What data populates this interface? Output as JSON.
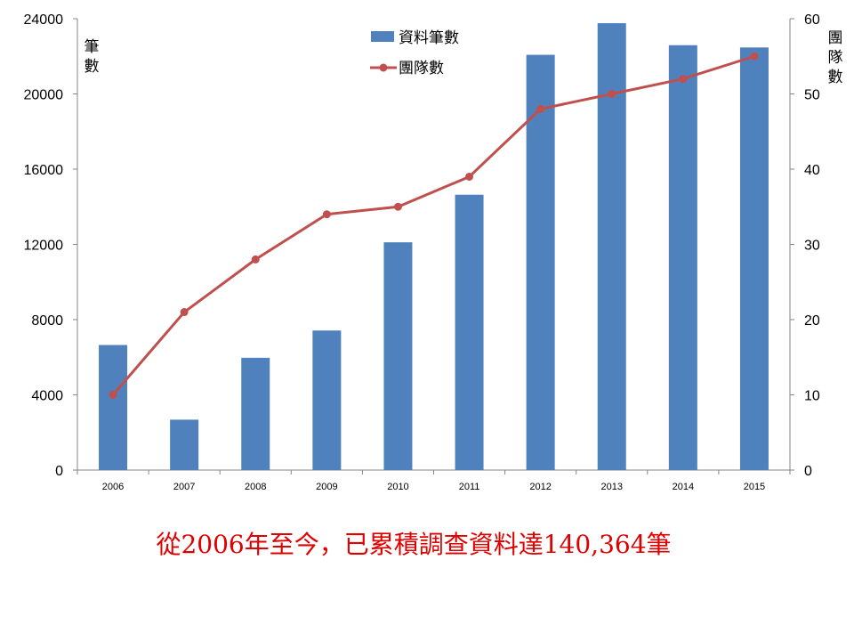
{
  "chart_data": {
    "type": "bar+line",
    "categories": [
      "2006",
      "2007",
      "2008",
      "2009",
      "2010",
      "2011",
      "2012",
      "2013",
      "2014",
      "2015"
    ],
    "series": [
      {
        "name": "資料筆數",
        "type": "bar",
        "axis": "left",
        "values": [
          6650,
          2680,
          5970,
          7420,
          12110,
          14640,
          22080,
          23760,
          22590,
          22470
        ]
      },
      {
        "name": "團隊數",
        "type": "line",
        "axis": "right",
        "values": [
          10,
          21,
          28,
          34,
          35,
          39,
          48,
          50,
          52,
          55
        ]
      }
    ],
    "ylabel": "筆數",
    "y2label": "團隊數",
    "ylim": [
      0,
      24000
    ],
    "y2lim": [
      0,
      60
    ],
    "yticks": [
      0,
      4000,
      8000,
      12000,
      16000,
      20000,
      24000
    ],
    "y2ticks": [
      0,
      10,
      20,
      30,
      40,
      50,
      60
    ],
    "grid": false,
    "legend": "top-center",
    "colors": {
      "bar": "#4f81bd",
      "line": "#c0504d"
    }
  },
  "caption": "從2006年至今，已累積調查資料達140,364筆"
}
